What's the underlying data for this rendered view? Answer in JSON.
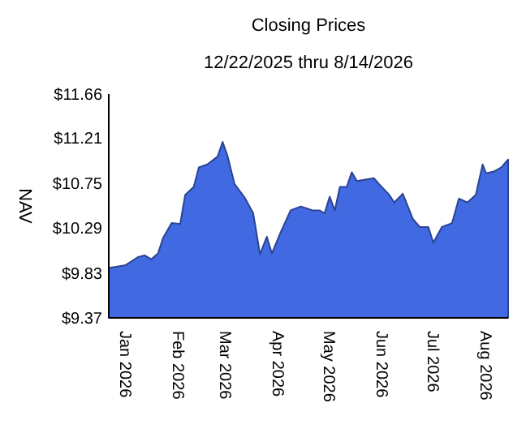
{
  "chart_data": {
    "type": "area",
    "title": "Closing Prices",
    "subtitle": "12/22/2025 thru 8/14/2026",
    "ylabel": "NAV",
    "x": [
      "2025-12-22",
      "2026-01-01",
      "2026-01-08",
      "2026-01-12",
      "2026-01-16",
      "2026-01-20",
      "2026-01-23",
      "2026-01-28",
      "2026-02-02",
      "2026-02-05",
      "2026-02-10",
      "2026-02-13",
      "2026-02-18",
      "2026-02-24",
      "2026-02-27",
      "2026-03-02",
      "2026-03-06",
      "2026-03-12",
      "2026-03-17",
      "2026-03-21",
      "2026-03-25",
      "2026-03-28",
      "2026-04-02",
      "2026-04-08",
      "2026-04-14",
      "2026-04-21",
      "2026-04-25",
      "2026-04-28",
      "2026-05-01",
      "2026-05-04",
      "2026-05-07",
      "2026-05-11",
      "2026-05-14",
      "2026-05-17",
      "2026-05-27",
      "2026-05-30",
      "2026-06-05",
      "2026-06-08",
      "2026-06-13",
      "2026-06-19",
      "2026-06-23",
      "2026-06-28",
      "2026-07-01",
      "2026-07-06",
      "2026-07-12",
      "2026-07-16",
      "2026-07-21",
      "2026-07-26",
      "2026-07-30",
      "2026-08-01",
      "2026-08-06",
      "2026-08-10",
      "2026-08-14"
    ],
    "series": [
      {
        "color": "#4169e1",
        "values": [
          9.88,
          9.91,
          9.99,
          10.01,
          9.97,
          10.03,
          10.19,
          10.34,
          10.33,
          10.63,
          10.71,
          10.91,
          10.94,
          11.02,
          11.17,
          11.02,
          10.74,
          10.6,
          10.44,
          10.02,
          10.2,
          10.03,
          10.24,
          10.47,
          10.51,
          10.47,
          10.47,
          10.44,
          10.61,
          10.47,
          10.71,
          10.71,
          10.86,
          10.77,
          10.8,
          10.74,
          10.63,
          10.55,
          10.64,
          10.38,
          10.3,
          10.3,
          10.14,
          10.3,
          10.34,
          10.59,
          10.55,
          10.63,
          10.94,
          10.85,
          10.87,
          10.91,
          10.99
        ]
      }
    ],
    "xlim": [
      "2025-12-22",
      "2026-08-14"
    ],
    "xticks": [
      {
        "value": "2026-01-01",
        "label": "Jan 2026"
      },
      {
        "value": "2026-02-01",
        "label": "Feb 2026"
      },
      {
        "value": "2026-03-01",
        "label": "Mar 2026"
      },
      {
        "value": "2026-04-01",
        "label": "Apr 2026"
      },
      {
        "value": "2026-05-01",
        "label": "May 2026"
      },
      {
        "value": "2026-06-01",
        "label": "Jun 2026"
      },
      {
        "value": "2026-07-01",
        "label": "Jul 2026"
      },
      {
        "value": "2026-08-01",
        "label": "Aug 2026"
      }
    ],
    "ylim": [
      9.37,
      11.66
    ],
    "yticks": [
      {
        "value": 9.37,
        "label": "$9.37"
      },
      {
        "value": 9.83,
        "label": "$9.83"
      },
      {
        "value": 10.29,
        "label": "$10.29"
      },
      {
        "value": 10.75,
        "label": "$10.75"
      },
      {
        "value": 11.21,
        "label": "$11.21"
      },
      {
        "value": 11.66,
        "label": "$11.66"
      }
    ],
    "grid": false
  }
}
